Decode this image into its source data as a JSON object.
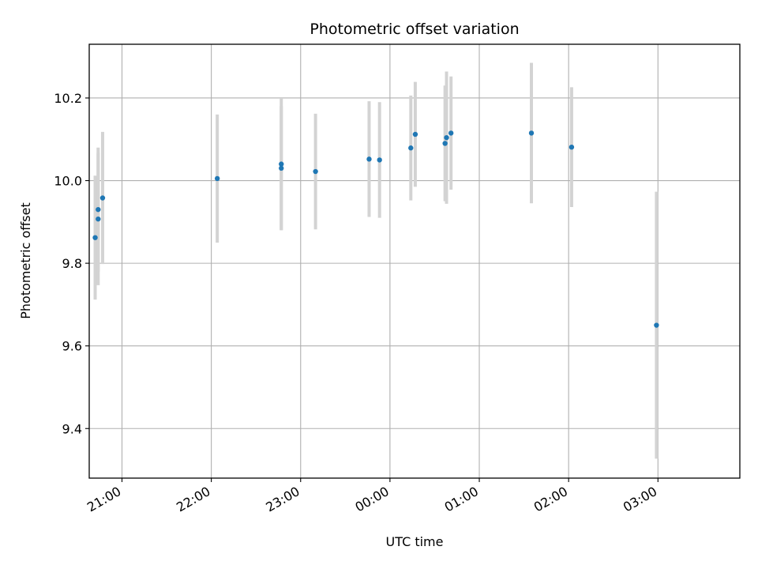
{
  "chart_data": {
    "type": "scatter",
    "title": "Photometric offset variation",
    "xlabel": "UTC time",
    "ylabel": "Photometric offset",
    "x_axis_kind": "time",
    "x_ticks": [
      "21:00",
      "22:00",
      "23:00",
      "00:00",
      "01:00",
      "02:00",
      "03:00"
    ],
    "y_ticks": [
      "9.4",
      "9.6",
      "9.8",
      "10.0",
      "10.2"
    ],
    "ylim": [
      9.28,
      10.33
    ],
    "xlim": [
      "20:38",
      "03:55"
    ],
    "grid": true,
    "x_tick_rotation": 30,
    "marker_color": "#1f77b4",
    "errorbar_color": "#d3d3d3",
    "points": [
      {
        "x": "20:42",
        "y": 9.862,
        "y_err": 0.15
      },
      {
        "x": "20:44",
        "y": 9.93,
        "y_err": 0.15
      },
      {
        "x": "20:44",
        "y": 9.907,
        "y_err": 0.16
      },
      {
        "x": "20:47",
        "y": 9.958,
        "y_err": 0.16
      },
      {
        "x": "22:04",
        "y": 10.005,
        "y_err": 0.155
      },
      {
        "x": "22:47",
        "y": 10.04,
        "y_err": 0.16
      },
      {
        "x": "22:47",
        "y": 10.03,
        "y_err": 0.15
      },
      {
        "x": "23:10",
        "y": 10.022,
        "y_err": 0.14
      },
      {
        "x": "23:46",
        "y": 10.052,
        "y_err": 0.14
      },
      {
        "x": "23:53",
        "y": 10.05,
        "y_err": 0.14
      },
      {
        "x": "00:14",
        "y": 10.079,
        "y_err": 0.127
      },
      {
        "x": "00:17",
        "y": 10.112,
        "y_err": 0.127
      },
      {
        "x": "00:37",
        "y": 10.09,
        "y_err": 0.14
      },
      {
        "x": "00:38",
        "y": 10.104,
        "y_err": 0.16
      },
      {
        "x": "00:41",
        "y": 10.115,
        "y_err": 0.137
      },
      {
        "x": "01:35",
        "y": 10.115,
        "y_err": 0.17
      },
      {
        "x": "02:02",
        "y": 10.081,
        "y_err": 0.145
      },
      {
        "x": "02:59",
        "y": 9.65,
        "y_err": 0.323
      }
    ]
  }
}
